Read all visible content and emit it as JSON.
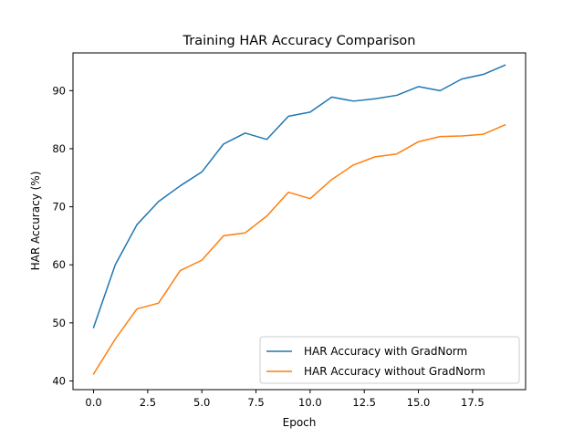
{
  "chart_data": {
    "type": "line",
    "title": "Training HAR Accuracy Comparison",
    "xlabel": "Epoch",
    "ylabel": "HAR Accuracy (%)",
    "xlim": [
      -0.95,
      19.95
    ],
    "ylim": [
      38.5,
      96.5
    ],
    "x": [
      0,
      1,
      2,
      3,
      4,
      5,
      6,
      7,
      8,
      9,
      10,
      11,
      12,
      13,
      14,
      15,
      16,
      17,
      18,
      19
    ],
    "xticks": [
      0.0,
      2.5,
      5.0,
      7.5,
      10.0,
      12.5,
      15.0,
      17.5
    ],
    "xtick_labels": [
      "0.0",
      "2.5",
      "5.0",
      "7.5",
      "10.0",
      "12.5",
      "15.0",
      "17.5"
    ],
    "yticks": [
      40,
      50,
      60,
      70,
      80,
      90
    ],
    "ytick_labels": [
      "40",
      "50",
      "60",
      "70",
      "80",
      "90"
    ],
    "grid": false,
    "legend_position": "lower-right",
    "series": [
      {
        "name": "HAR Accuracy with GradNorm",
        "color": "#1f77b4",
        "values": [
          49.2,
          60.0,
          66.9,
          70.9,
          73.6,
          76.0,
          80.8,
          82.7,
          81.6,
          85.6,
          86.3,
          88.9,
          88.2,
          88.6,
          89.2,
          90.7,
          90.0,
          92.0,
          92.8,
          94.4
        ]
      },
      {
        "name": "HAR Accuracy without GradNorm",
        "color": "#ff7f0e",
        "values": [
          41.2,
          47.2,
          52.4,
          53.4,
          59.0,
          60.8,
          65.0,
          65.5,
          68.4,
          72.5,
          71.4,
          74.7,
          77.2,
          78.6,
          79.1,
          81.2,
          82.1,
          82.2,
          82.5,
          84.1
        ]
      }
    ]
  }
}
